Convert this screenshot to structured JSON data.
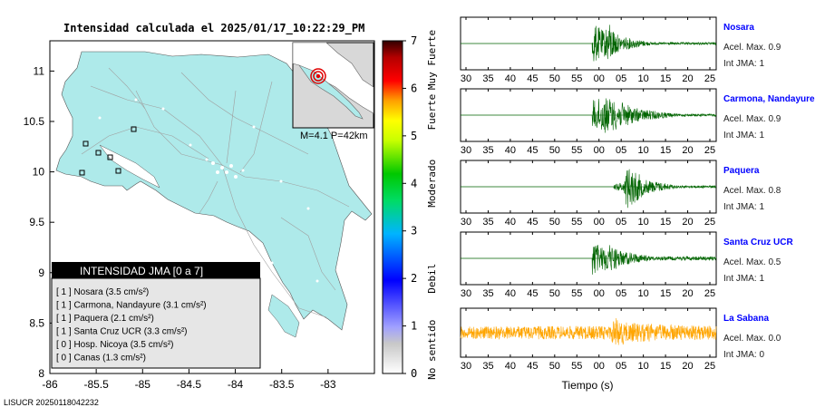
{
  "header": {
    "title": "Intensidad calculada el 2025/01/17_10:22:29_PM",
    "footer_id": "LISUCR 20250118042232"
  },
  "inset": {
    "label": "M=4.1 P=42km"
  },
  "colorbar": {
    "ticks": [
      "0",
      "1",
      "2",
      "3",
      "4",
      "5",
      "6",
      "7"
    ],
    "labels": [
      "No sentido",
      "Debil",
      "Moderado",
      "Fuerte",
      "Muy Fuerte"
    ]
  },
  "legend": {
    "title": "INTENSIDAD JMA [0 a 7]",
    "items": [
      "[ 1 ]  Nosara (3.5 cm/s²)",
      "[ 1 ]  Carmona, Nandayure (3.1 cm/s²)",
      "[ 1 ]  Paquera (2.1 cm/s²)",
      "[ 1 ]  Santa Cruz UCR (3.3 cm/s²)",
      "[ 0 ]  Hosp. Nicoya (3.5 cm/s²)",
      "[ 0 ]  Canas (1.3 cm/s²)"
    ]
  },
  "map_axes": {
    "x_ticks": [
      "-86",
      "-85.5",
      "-85",
      "-84.5",
      "-84",
      "-83.5",
      "-83"
    ],
    "y_ticks": [
      "8",
      "8.5",
      "9",
      "9.5",
      "10",
      "10.5",
      "11"
    ]
  },
  "wave_axes": {
    "x_ticks": [
      "30",
      "35",
      "40",
      "45",
      "50",
      "55",
      "00",
      "05",
      "10",
      "15",
      "20",
      "25"
    ],
    "xlabel": "Tiempo (s)"
  },
  "stations": [
    {
      "name": "Nosara",
      "acel": "Acel. Max. 0.9",
      "int": "Int JMA: 1"
    },
    {
      "name": "Carmona, Nandayure",
      "acel": "Acel. Max. 0.9",
      "int": "Int JMA: 1"
    },
    {
      "name": "Paquera",
      "acel": "Acel. Max. 0.8",
      "int": "Int JMA: 1"
    },
    {
      "name": "Santa Cruz UCR",
      "acel": "Acel. Max. 0.5",
      "int": "Int JMA: 1"
    },
    {
      "name": "La Sabana",
      "acel": "Acel. Max. 0.0",
      "int": "Int JMA: 0"
    }
  ],
  "colors": {
    "land": "#aeeaea",
    "trace_green": "#006400",
    "trace_orange": "#ffa500",
    "station_name": "#0000ff"
  },
  "chart_data": [
    {
      "type": "scatter",
      "title": "Intensidad calculada el 2025/01/17_10:22:29_PM",
      "xlabel": "",
      "ylabel": "",
      "xlim": [
        -86,
        -82.5
      ],
      "ylim": [
        8,
        11.3
      ],
      "x_ticks": [
        -86,
        -85.5,
        -85,
        -84.5,
        -84,
        -83.5,
        -83
      ],
      "y_ticks": [
        8,
        8.5,
        9,
        9.5,
        10,
        10.5,
        11
      ],
      "colorbar": {
        "range": [
          0,
          7
        ],
        "labels": [
          "No sentido",
          "Debil",
          "Moderado",
          "Fuerte",
          "Muy Fuerte"
        ]
      },
      "legend_placement": "bottom-left",
      "series": [
        {
          "name": "INTENSIDAD JMA [0 a 7]",
          "points": [
            {
              "label": "Nosara",
              "x": -85.65,
              "y": 9.98,
              "intensity": 1
            },
            {
              "label": "Carmona, Nandayure",
              "x": -85.35,
              "y": 10.03,
              "intensity": 1
            },
            {
              "label": "Paquera",
              "x": -85.28,
              "y": 9.82,
              "intensity": 1
            },
            {
              "label": "Santa Cruz UCR",
              "x": -85.58,
              "y": 10.26,
              "intensity": 1
            },
            {
              "label": "Hosp. Nicoya",
              "x": -85.45,
              "y": 10.15,
              "intensity": 0
            },
            {
              "label": "Canas",
              "x": -85.08,
              "y": 10.42,
              "intensity": 0
            }
          ]
        }
      ]
    },
    {
      "type": "line",
      "title": "",
      "xlabel": "Tiempo (s)",
      "ylabel": "",
      "x_ticks": [
        "30",
        "35",
        "40",
        "45",
        "50",
        "55",
        "00",
        "05",
        "10",
        "15",
        "20",
        "25"
      ],
      "series": [
        {
          "name": "Nosara",
          "peak": 0.9
        },
        {
          "name": "Carmona, Nandayure",
          "peak": 0.9
        },
        {
          "name": "Paquera",
          "peak": 0.8
        },
        {
          "name": "Santa Cruz UCR",
          "peak": 0.5
        },
        {
          "name": "La Sabana",
          "peak": 0.0
        }
      ]
    }
  ]
}
